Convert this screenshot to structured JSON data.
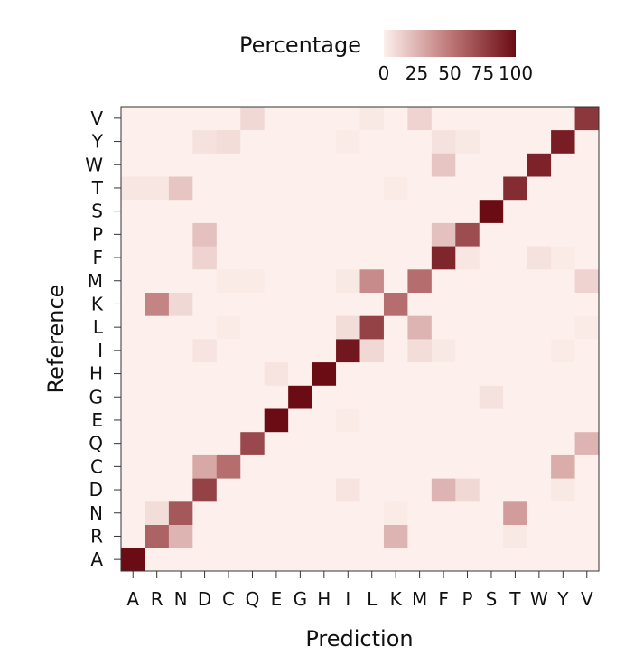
{
  "chart_data": {
    "type": "heatmap",
    "title": "",
    "xlabel": "Prediction",
    "ylabel": "Reference",
    "x_categories": [
      "A",
      "R",
      "N",
      "D",
      "C",
      "Q",
      "E",
      "G",
      "H",
      "I",
      "L",
      "K",
      "M",
      "F",
      "P",
      "S",
      "T",
      "W",
      "Y",
      "V"
    ],
    "y_categories": [
      "A",
      "R",
      "N",
      "D",
      "C",
      "Q",
      "E",
      "G",
      "H",
      "I",
      "L",
      "K",
      "M",
      "F",
      "P",
      "S",
      "T",
      "W",
      "Y",
      "V"
    ],
    "value_range": [
      0,
      100
    ],
    "legend": {
      "title": "Percentage",
      "ticks": [
        0,
        25,
        50,
        75,
        100
      ],
      "tick_labels": [
        "0",
        "25",
        "50",
        "75",
        "100"
      ],
      "placement": "top",
      "color_low": "#fdf0ec",
      "color_high": "#6b0c14"
    },
    "cell_background_value": 0,
    "cells_comment_free": true,
    "values": {
      "A": {
        "A": 100
      },
      "R": {
        "R": 60,
        "N": 25,
        "K": 25,
        "T": 3
      },
      "N": {
        "R": 8,
        "N": 65,
        "K": 2,
        "T": 35
      },
      "D": {
        "D": 75,
        "I": 5,
        "F": 25,
        "P": 10,
        "Y": 3
      },
      "C": {
        "D": 30,
        "C": 55,
        "Y": 28
      },
      "Q": {
        "Q": 72,
        "V": 25
      },
      "E": {
        "E": 100,
        "I": 2
      },
      "G": {
        "G": 100,
        "S": 6
      },
      "H": {
        "E": 5,
        "H": 100
      },
      "I": {
        "D": 5,
        "I": 95,
        "L": 10,
        "M": 8,
        "F": 3,
        "Y": 2
      },
      "L": {
        "C": 2,
        "I": 8,
        "L": 75,
        "M": 25,
        "V": 2
      },
      "K": {
        "R": 45,
        "N": 10,
        "K": 55
      },
      "M": {
        "C": 2,
        "Q": 2,
        "I": 3,
        "L": 42,
        "M": 55,
        "V": 12
      },
      "F": {
        "D": 12,
        "F": 88,
        "P": 4,
        "W": 6,
        "Y": 2
      },
      "P": {
        "D": 20,
        "F": 20,
        "P": 70
      },
      "S": {
        "S": 100
      },
      "T": {
        "A": 4,
        "R": 4,
        "N": 18,
        "K": 2,
        "T": 85
      },
      "W": {
        "F": 18,
        "W": 90
      },
      "Y": {
        "D": 6,
        "C": 8,
        "I": 2,
        "F": 6,
        "P": 3,
        "Y": 92
      },
      "V": {
        "Q": 10,
        "L": 3,
        "M": 12,
        "V": 80
      }
    }
  }
}
